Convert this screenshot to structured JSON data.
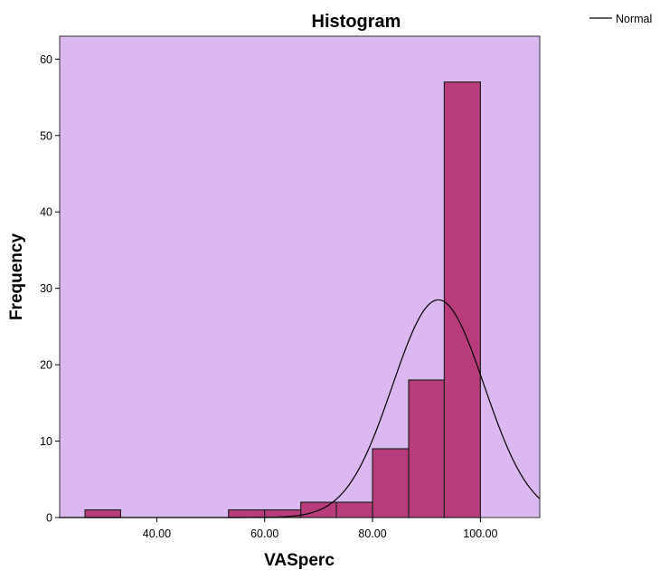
{
  "chart_data": {
    "type": "bar",
    "title": "Histogram",
    "xlabel": "VASperc",
    "ylabel": "Frequency",
    "xlim": [
      22,
      111
    ],
    "ylim": [
      0,
      63
    ],
    "x_ticks": [
      40,
      60,
      80,
      100
    ],
    "x_tick_labels": [
      "40.00",
      "60.00",
      "80.00",
      "100.00"
    ],
    "y_ticks": [
      0,
      10,
      20,
      30,
      40,
      50,
      60
    ],
    "y_tick_labels": [
      "0",
      "10",
      "20",
      "30",
      "40",
      "50",
      "60"
    ],
    "bins": [
      {
        "start": 26.7,
        "end": 33.3,
        "count": 1
      },
      {
        "start": 53.3,
        "end": 60.0,
        "count": 1
      },
      {
        "start": 60.0,
        "end": 66.7,
        "count": 1
      },
      {
        "start": 66.7,
        "end": 73.3,
        "count": 2
      },
      {
        "start": 73.3,
        "end": 80.0,
        "count": 2
      },
      {
        "start": 80.0,
        "end": 86.7,
        "count": 9
      },
      {
        "start": 86.7,
        "end": 93.3,
        "count": 18
      },
      {
        "start": 93.3,
        "end": 100.0,
        "count": 57
      }
    ],
    "normal_curve": {
      "mean": 92.2,
      "sd": 8.5,
      "n": 91,
      "bin_width": 6.67
    },
    "legend": {
      "entries": [
        "Normal"
      ],
      "placement": "top-right"
    },
    "grid": false,
    "colors": {
      "plot_background": "#dbb8f0",
      "bar_fill": "#b83c7b",
      "bar_stroke": "#222222",
      "curve": "#000000"
    }
  }
}
